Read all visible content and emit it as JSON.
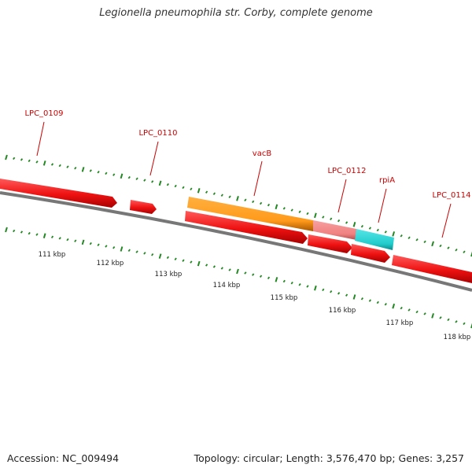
{
  "title": "Legionella pneumophila str. Corby, complete genome",
  "footer": {
    "accession": "Accession: NC_009494",
    "summary": "Topology: circular; Length: 3,576,470 bp; Genes: 3,257"
  },
  "colors": {
    "gene": "#ee1111",
    "backbone": "#777777",
    "tick": "#228822",
    "label": "#cc0000",
    "vacB": "#ff9a1a",
    "lipid_segment": "#f08080",
    "rpiA": "#22cccc"
  },
  "scale_labels": [
    "111 kbp",
    "112 kbp",
    "113 kbp",
    "114 kbp",
    "115 kbp",
    "116 kbp",
    "117 kbp",
    "118 kbp"
  ],
  "gene_labels": [
    "LPC_0109",
    "LPC_0110",
    "vacB",
    "LPC_0112",
    "rpiA",
    "LPC_0114"
  ]
}
